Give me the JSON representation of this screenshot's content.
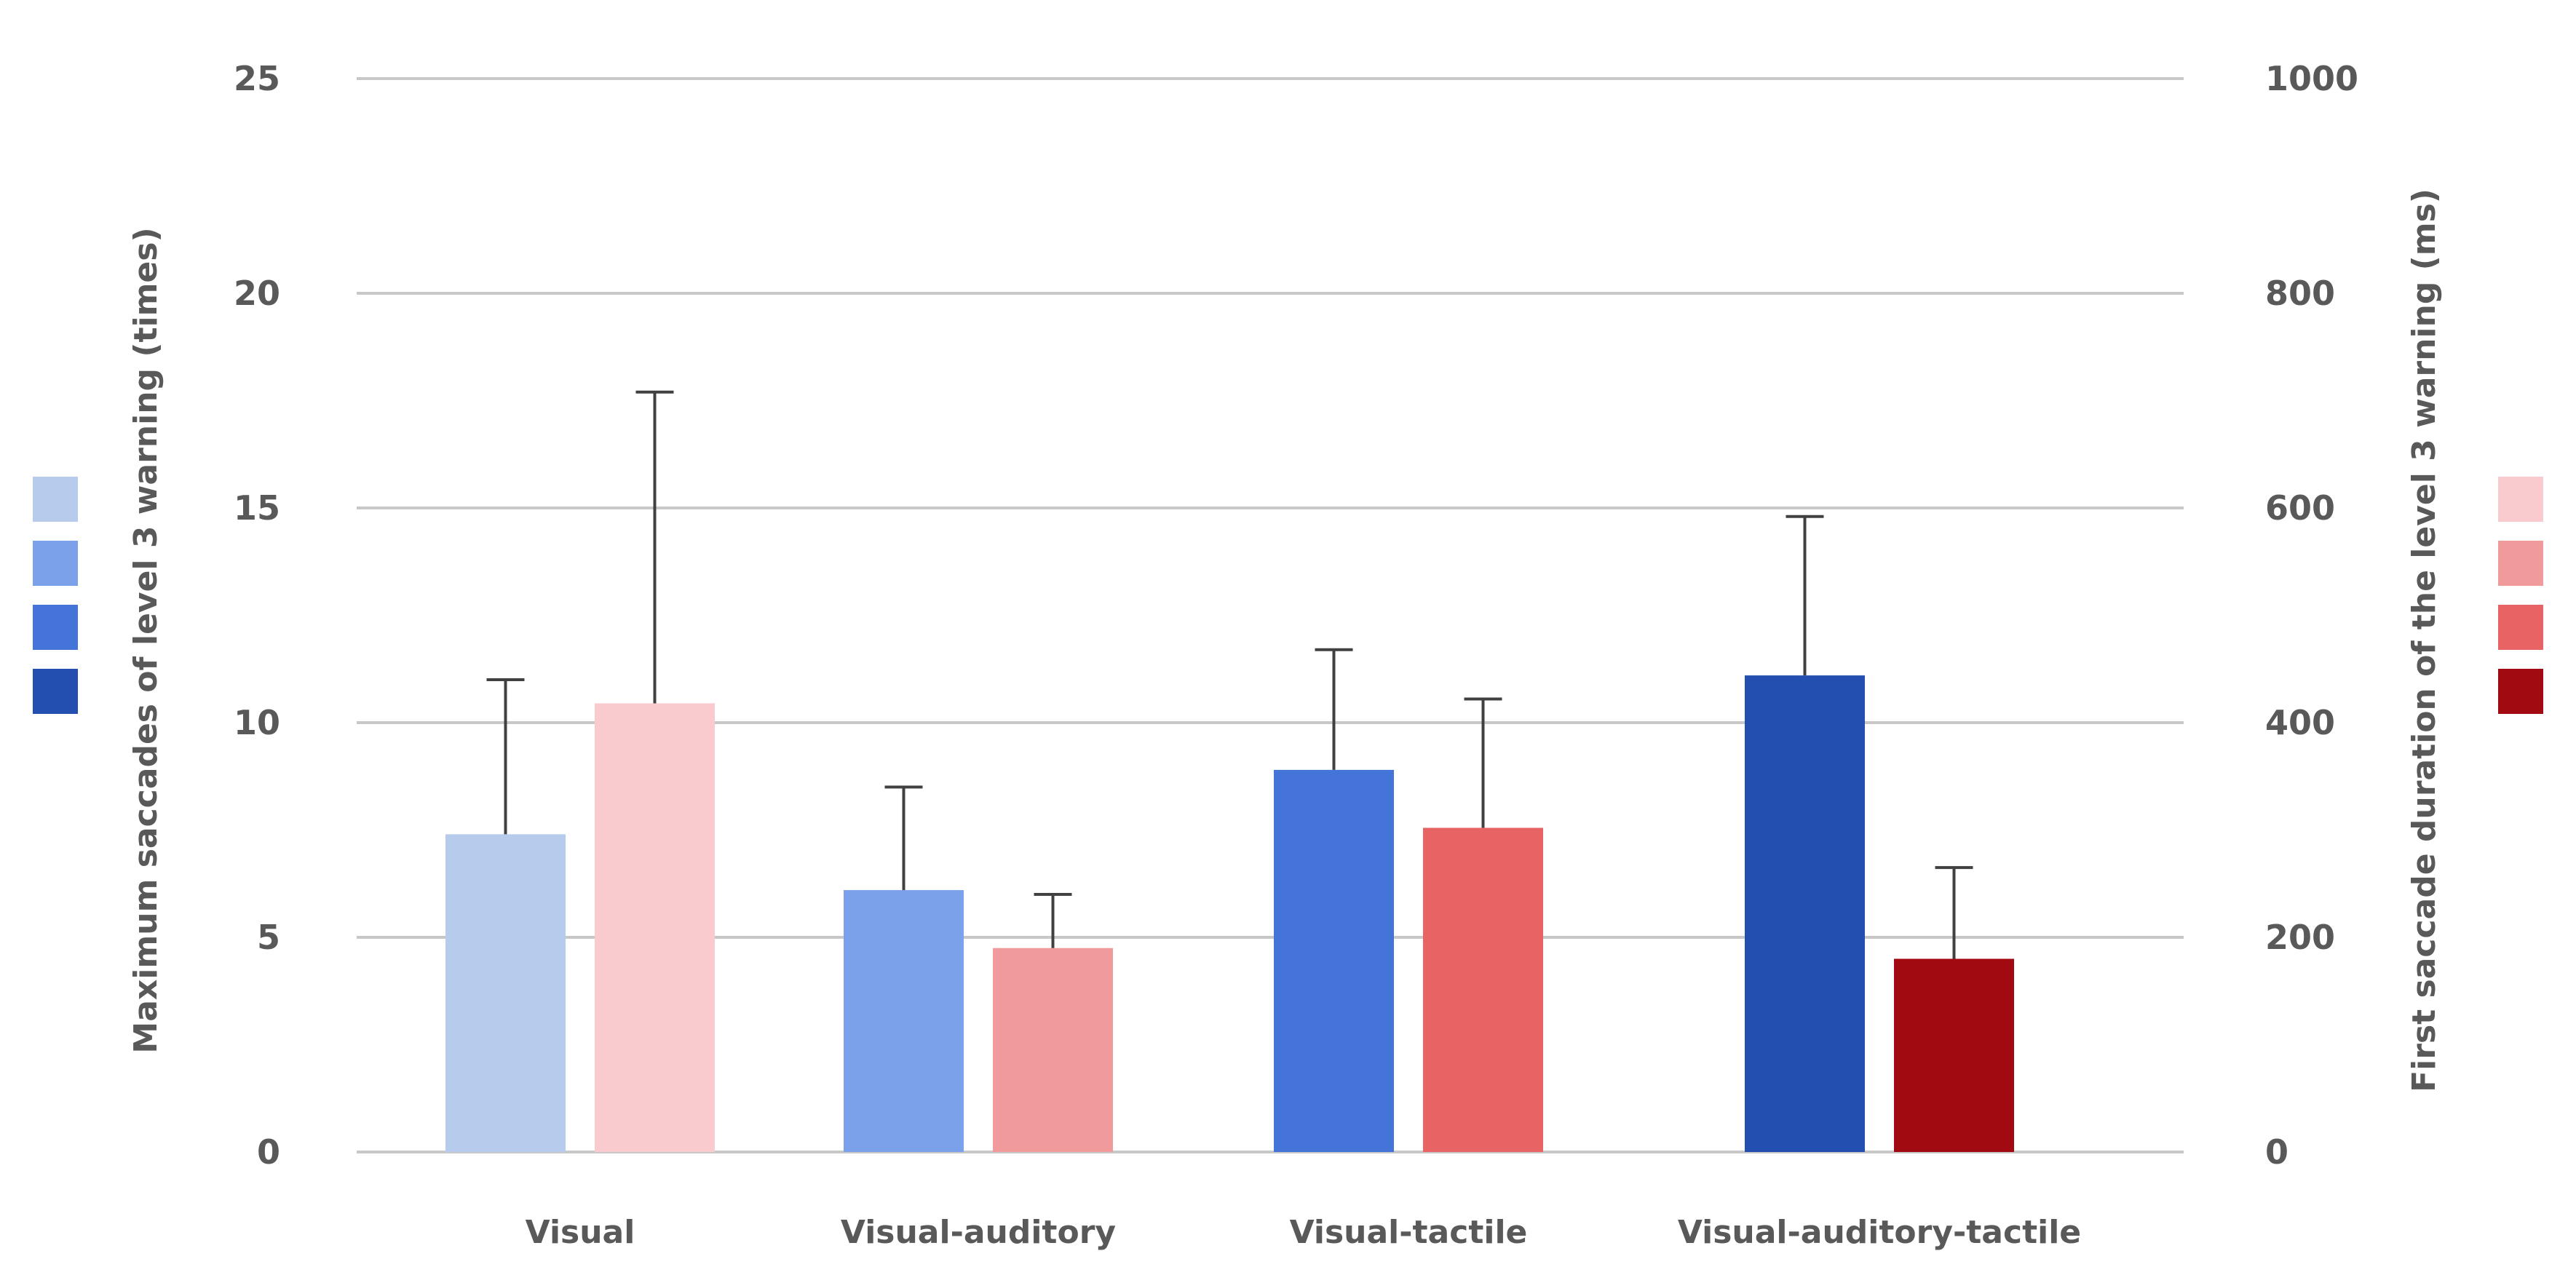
{
  "chart_data": {
    "type": "bar",
    "categories": [
      "Visual",
      "Visual-auditory",
      "Visual-tactile",
      "Visual-auditory-tactile"
    ],
    "ylabel": "Maximum saccades of level 3 warning (times)",
    "y2label": "First saccade duration of the level 3 warning (ms)",
    "ylim": [
      0,
      25
    ],
    "y2lim": [
      0,
      1000
    ],
    "yticks": [
      "0",
      "5",
      "10",
      "15",
      "20",
      "25"
    ],
    "y2ticks": [
      "0",
      "200",
      "400",
      "600",
      "800",
      "1000"
    ],
    "grid": true,
    "series": [
      {
        "axis": "left",
        "values": [
          7.4,
          6.1,
          8.9,
          11.1
        ],
        "errors": [
          3.6,
          2.4,
          2.8,
          3.7
        ],
        "colors": [
          "#b7cbec",
          "#7aa1ea",
          "#4574d9",
          "#224fb0"
        ]
      },
      {
        "axis": "right",
        "values": [
          418,
          190,
          302,
          180
        ],
        "errors": [
          290,
          50,
          120,
          85
        ],
        "colors": [
          "#f9cbcf",
          "#f19a9c",
          "#e86363",
          "#a20a12"
        ]
      }
    ],
    "legend_left_colors": [
      "#b7cbec",
      "#7aa1ea",
      "#4574d9",
      "#224fb0"
    ],
    "legend_right_colors": [
      "#f9cbcf",
      "#f19a9c",
      "#e86363",
      "#a20a12"
    ]
  }
}
